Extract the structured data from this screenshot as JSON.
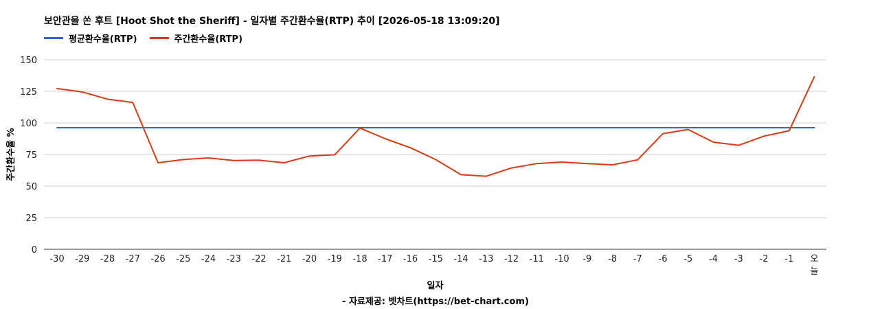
{
  "chart_data": {
    "type": "line",
    "title": "보안관을 쏜 후트 [Hoot Shot the Sheriff] - 일자별 주간환수율(RTP) 추이 [2026-05-18 13:09:20]",
    "xlabel": "일자",
    "ylabel": "주간환수율 %",
    "categories": [
      "-30",
      "-29",
      "-28",
      "-27",
      "-26",
      "-25",
      "-24",
      "-23",
      "-22",
      "-21",
      "-20",
      "-19",
      "-18",
      "-17",
      "-16",
      "-15",
      "-14",
      "-13",
      "-12",
      "-11",
      "-10",
      "-9",
      "-8",
      "-7",
      "-6",
      "-5",
      "-4",
      "-3",
      "-2",
      "-1",
      "오늘"
    ],
    "ylim": [
      0,
      150
    ],
    "yticks": [
      0,
      25,
      50,
      75,
      100,
      125,
      150
    ],
    "grid": true,
    "legend_position": "top-left",
    "series": [
      {
        "name": "평균환수율(RTP)",
        "color": "#3366cc",
        "values": [
          96.2,
          96.2,
          96.2,
          96.2,
          96.2,
          96.2,
          96.2,
          96.2,
          96.2,
          96.2,
          96.2,
          96.2,
          96.2,
          96.2,
          96.2,
          96.2,
          96.2,
          96.2,
          96.2,
          96.2,
          96.2,
          96.2,
          96.2,
          96.2,
          96.2,
          96.2,
          96.2,
          96.2,
          96.2,
          96.2,
          96.2
        ]
      },
      {
        "name": "주간환수율(RTP)",
        "color": "#dc3912",
        "values": [
          127.2,
          124.5,
          118.8,
          116.2,
          68.5,
          71.0,
          72.3,
          70.2,
          70.5,
          68.5,
          73.8,
          74.8,
          96.0,
          87.5,
          80.3,
          71.0,
          59.0,
          57.8,
          64.3,
          67.8,
          69.0,
          67.8,
          66.8,
          70.8,
          91.5,
          94.8,
          84.8,
          82.3,
          89.5,
          93.8,
          136.5
        ]
      }
    ]
  },
  "footer": {
    "credit": "- 자료제공: 벳차트(https://bet-chart.com)"
  }
}
